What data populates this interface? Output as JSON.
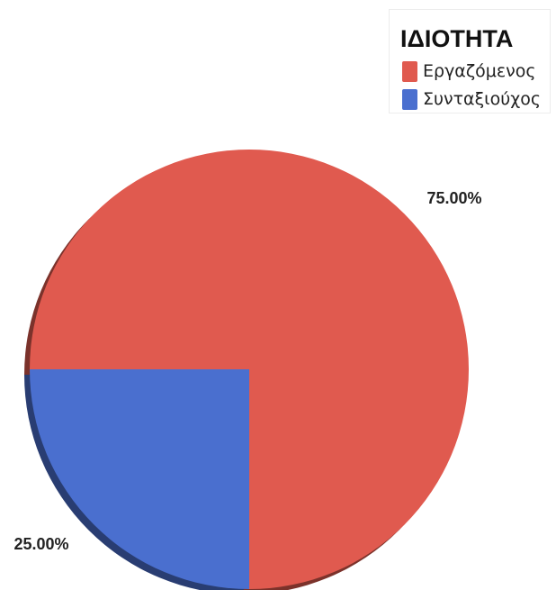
{
  "chart_data": {
    "type": "pie",
    "title": "",
    "legend_title": "ΙΔΙΟΤΗΤΑ",
    "legend_position": "top-right",
    "slices": [
      {
        "label": "Εργαζόμενος",
        "value": 75.0,
        "display": "75.00%",
        "color": "#e05a4f"
      },
      {
        "label": "Συνταξιούχος",
        "value": 25.0,
        "display": "25.00%",
        "color": "#4a6fcf"
      }
    ]
  }
}
